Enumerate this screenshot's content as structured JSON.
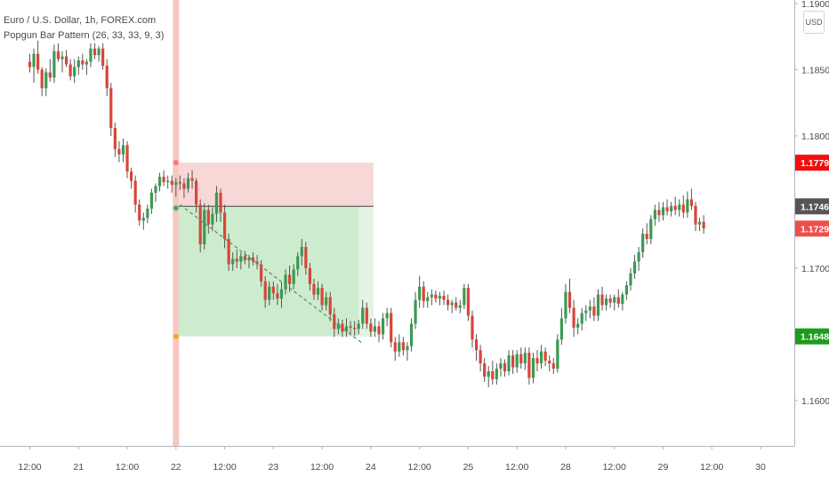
{
  "legend": {
    "symbol_line": "Euro / U.S. Dollar, 1h, FOREX.com",
    "indicator_line": "Popgun Bar Pattern (26, 33, 33, 9, 3)"
  },
  "currency_button": "USD",
  "colors": {
    "up": "#3a9a52",
    "down": "#d9453a",
    "stop_zone": "#f8d7d7",
    "target_zone": "#cdeccd",
    "target_zone_faded": "#e4f4e4",
    "signal_bar": "#f6c7c4",
    "stop_label": "#f20e0e",
    "current_label": "#555555",
    "last_label": "#ef4f4a",
    "target_label": "#1b9b1b",
    "dashed_trend": "#6b8f6b"
  },
  "chart_data": {
    "type": "candlestick",
    "title": "",
    "ylim": [
      1.1575,
      1.19
    ],
    "y_ticks": [
      {
        "value": 1.19,
        "label": "1.19000"
      },
      {
        "value": 1.185,
        "label": "1.18500"
      },
      {
        "value": 1.18,
        "label": "1.18000"
      },
      {
        "value": 1.175,
        "label": "1.17500"
      },
      {
        "value": 1.17,
        "label": "1.17000"
      },
      {
        "value": 1.165,
        "label": "1.16500"
      },
      {
        "value": 1.16,
        "label": "1.16000"
      }
    ],
    "x_ticks": [
      {
        "bar": 0,
        "label": "12:00"
      },
      {
        "bar": 12,
        "label": "21"
      },
      {
        "bar": 24,
        "label": "12:00"
      },
      {
        "bar": 36,
        "label": "22"
      },
      {
        "bar": 48,
        "label": "12:00"
      },
      {
        "bar": 60,
        "label": "23"
      },
      {
        "bar": 72,
        "label": "12:00"
      },
      {
        "bar": 84,
        "label": "24"
      },
      {
        "bar": 96,
        "label": "12:00"
      },
      {
        "bar": 108,
        "label": "25"
      },
      {
        "bar": 120,
        "label": "12:00"
      },
      {
        "bar": 132,
        "label": "28"
      },
      {
        "bar": 144,
        "label": "12:00"
      },
      {
        "bar": 156,
        "label": "29"
      },
      {
        "bar": 168,
        "label": "12:00"
      },
      {
        "bar": 180,
        "label": "30"
      }
    ],
    "candles": [
      [
        1.1856,
        1.1862,
        1.1848,
        1.1852
      ],
      [
        1.1852,
        1.1866,
        1.184,
        1.1862
      ],
      [
        1.1862,
        1.1872,
        1.1847,
        1.185
      ],
      [
        1.185,
        1.1852,
        1.183,
        1.1836
      ],
      [
        1.1836,
        1.1851,
        1.183,
        1.1848
      ],
      [
        1.1848,
        1.1858,
        1.1841,
        1.1844
      ],
      [
        1.1844,
        1.1869,
        1.184,
        1.1864
      ],
      [
        1.1864,
        1.187,
        1.1856,
        1.1858
      ],
      [
        1.1858,
        1.1864,
        1.1848,
        1.186
      ],
      [
        1.186,
        1.1865,
        1.1852,
        1.1854
      ],
      [
        1.1854,
        1.1858,
        1.1842,
        1.1845
      ],
      [
        1.1845,
        1.1858,
        1.184,
        1.1852
      ],
      [
        1.1852,
        1.186,
        1.1846,
        1.1857
      ],
      [
        1.1857,
        1.1862,
        1.185,
        1.1854
      ],
      [
        1.1854,
        1.1858,
        1.1846,
        1.1856
      ],
      [
        1.1856,
        1.187,
        1.1852,
        1.1866
      ],
      [
        1.1866,
        1.187,
        1.1858,
        1.1861
      ],
      [
        1.1861,
        1.1868,
        1.1856,
        1.1866
      ],
      [
        1.1866,
        1.187,
        1.185,
        1.1853
      ],
      [
        1.1853,
        1.1858,
        1.183,
        1.1836
      ],
      [
        1.1836,
        1.184,
        1.18,
        1.1806
      ],
      [
        1.1806,
        1.181,
        1.1784,
        1.179
      ],
      [
        1.179,
        1.1796,
        1.178,
        1.1786
      ],
      [
        1.1786,
        1.1798,
        1.178,
        1.1793
      ],
      [
        1.1793,
        1.1796,
        1.1768,
        1.1773
      ],
      [
        1.1773,
        1.1776,
        1.176,
        1.1766
      ],
      [
        1.1766,
        1.177,
        1.1742,
        1.1748
      ],
      [
        1.1748,
        1.1752,
        1.1732,
        1.1736
      ],
      [
        1.1736,
        1.1742,
        1.1729,
        1.1738
      ],
      [
        1.1738,
        1.1748,
        1.1734,
        1.1745
      ],
      [
        1.1745,
        1.176,
        1.1741,
        1.1757
      ],
      [
        1.1757,
        1.1764,
        1.175,
        1.1762
      ],
      [
        1.1762,
        1.1772,
        1.1758,
        1.1769
      ],
      [
        1.1769,
        1.1774,
        1.1762,
        1.1765
      ],
      [
        1.1765,
        1.177,
        1.176,
        1.1766
      ],
      [
        1.1766,
        1.177,
        1.1757,
        1.1763
      ],
      [
        1.1763,
        1.1768,
        1.1754,
        1.1765
      ],
      [
        1.1765,
        1.177,
        1.1759,
        1.1764
      ],
      [
        1.1764,
        1.1768,
        1.1753,
        1.176
      ],
      [
        1.176,
        1.1772,
        1.1757,
        1.1768
      ],
      [
        1.1768,
        1.1774,
        1.176,
        1.1766
      ],
      [
        1.1766,
        1.1768,
        1.1742,
        1.1748
      ],
      [
        1.1748,
        1.1752,
        1.1712,
        1.1718
      ],
      [
        1.1718,
        1.1749,
        1.1714,
        1.1744
      ],
      [
        1.1744,
        1.1748,
        1.1726,
        1.1733
      ],
      [
        1.1733,
        1.1746,
        1.1728,
        1.1741
      ],
      [
        1.1741,
        1.1762,
        1.1735,
        1.1757
      ],
      [
        1.1757,
        1.176,
        1.1735,
        1.1742
      ],
      [
        1.1742,
        1.1748,
        1.1715,
        1.1722
      ],
      [
        1.1722,
        1.1726,
        1.1698,
        1.1703
      ],
      [
        1.1703,
        1.1712,
        1.1698,
        1.1707
      ],
      [
        1.1707,
        1.1714,
        1.17,
        1.1705
      ],
      [
        1.1705,
        1.1712,
        1.1699,
        1.1709
      ],
      [
        1.1709,
        1.1713,
        1.1703,
        1.1706
      ],
      [
        1.1706,
        1.171,
        1.17,
        1.1708
      ],
      [
        1.1708,
        1.1712,
        1.1702,
        1.1705
      ],
      [
        1.1705,
        1.171,
        1.1699,
        1.1703
      ],
      [
        1.1703,
        1.1706,
        1.1686,
        1.169
      ],
      [
        1.169,
        1.1694,
        1.167,
        1.1676
      ],
      [
        1.1676,
        1.169,
        1.1672,
        1.1686
      ],
      [
        1.1686,
        1.169,
        1.1676,
        1.1681
      ],
      [
        1.1681,
        1.1688,
        1.1672,
        1.1677
      ],
      [
        1.1677,
        1.169,
        1.167,
        1.1684
      ],
      [
        1.1684,
        1.1699,
        1.168,
        1.1695
      ],
      [
        1.1695,
        1.1702,
        1.1682,
        1.1688
      ],
      [
        1.1688,
        1.1703,
        1.1684,
        1.1699
      ],
      [
        1.1699,
        1.1712,
        1.1694,
        1.1709
      ],
      [
        1.1709,
        1.1722,
        1.1702,
        1.1716
      ],
      [
        1.1716,
        1.172,
        1.1695,
        1.17
      ],
      [
        1.17,
        1.1704,
        1.1683,
        1.1688
      ],
      [
        1.1688,
        1.1692,
        1.1676,
        1.168
      ],
      [
        1.168,
        1.169,
        1.1676,
        1.1685
      ],
      [
        1.1685,
        1.1688,
        1.1668,
        1.1672
      ],
      [
        1.1672,
        1.1682,
        1.1668,
        1.1678
      ],
      [
        1.1678,
        1.1682,
        1.166,
        1.1665
      ],
      [
        1.1665,
        1.167,
        1.1648,
        1.1654
      ],
      [
        1.1654,
        1.1662,
        1.165,
        1.1658
      ],
      [
        1.1658,
        1.1661,
        1.1648,
        1.1652
      ],
      [
        1.1652,
        1.1662,
        1.1648,
        1.1656
      ],
      [
        1.1656,
        1.166,
        1.165,
        1.1655
      ],
      [
        1.1655,
        1.166,
        1.1649,
        1.1654
      ],
      [
        1.1654,
        1.1661,
        1.165,
        1.1658
      ],
      [
        1.1658,
        1.1676,
        1.1654,
        1.167
      ],
      [
        1.167,
        1.1674,
        1.1654,
        1.1658
      ],
      [
        1.1658,
        1.1662,
        1.1648,
        1.1652
      ],
      [
        1.1652,
        1.1662,
        1.1648,
        1.1656
      ],
      [
        1.1656,
        1.166,
        1.1644,
        1.165
      ],
      [
        1.165,
        1.1666,
        1.1646,
        1.1662
      ],
      [
        1.1662,
        1.167,
        1.1656,
        1.1666
      ],
      [
        1.1666,
        1.167,
        1.164,
        1.1644
      ],
      [
        1.1644,
        1.1648,
        1.163,
        1.1637
      ],
      [
        1.1637,
        1.165,
        1.1633,
        1.1644
      ],
      [
        1.1644,
        1.1648,
        1.1634,
        1.1638
      ],
      [
        1.1638,
        1.1644,
        1.163,
        1.1641
      ],
      [
        1.1641,
        1.1662,
        1.1637,
        1.1658
      ],
      [
        1.1658,
        1.1682,
        1.1654,
        1.1676
      ],
      [
        1.1676,
        1.1694,
        1.167,
        1.1686
      ],
      [
        1.1686,
        1.169,
        1.167,
        1.1675
      ],
      [
        1.1675,
        1.1682,
        1.167,
        1.1678
      ],
      [
        1.1678,
        1.1684,
        1.1672,
        1.168
      ],
      [
        1.168,
        1.1683,
        1.1674,
        1.1677
      ],
      [
        1.1677,
        1.1682,
        1.1672,
        1.1679
      ],
      [
        1.1679,
        1.1683,
        1.1672,
        1.1676
      ],
      [
        1.1676,
        1.168,
        1.1668,
        1.1672
      ],
      [
        1.1672,
        1.1676,
        1.1666,
        1.1674
      ],
      [
        1.1674,
        1.1678,
        1.1668,
        1.167
      ],
      [
        1.167,
        1.1676,
        1.1666,
        1.1672
      ],
      [
        1.1672,
        1.1688,
        1.1669,
        1.1685
      ],
      [
        1.1685,
        1.1688,
        1.166,
        1.1664
      ],
      [
        1.1664,
        1.1668,
        1.164,
        1.1646
      ],
      [
        1.1646,
        1.165,
        1.163,
        1.1638
      ],
      [
        1.1638,
        1.1642,
        1.1622,
        1.1628
      ],
      [
        1.1628,
        1.1632,
        1.1614,
        1.1618
      ],
      [
        1.1618,
        1.1626,
        1.161,
        1.1622
      ],
      [
        1.1622,
        1.163,
        1.1612,
        1.1616
      ],
      [
        1.1616,
        1.1628,
        1.1612,
        1.1624
      ],
      [
        1.1624,
        1.1632,
        1.1618,
        1.1628
      ],
      [
        1.1628,
        1.1631,
        1.1618,
        1.1622
      ],
      [
        1.1622,
        1.1638,
        1.1619,
        1.1634
      ],
      [
        1.1634,
        1.1638,
        1.162,
        1.1625
      ],
      [
        1.1625,
        1.1638,
        1.1621,
        1.1635
      ],
      [
        1.1635,
        1.164,
        1.1624,
        1.1628
      ],
      [
        1.1628,
        1.164,
        1.1623,
        1.1636
      ],
      [
        1.1636,
        1.164,
        1.1612,
        1.1617
      ],
      [
        1.1617,
        1.1636,
        1.1613,
        1.1632
      ],
      [
        1.1632,
        1.1638,
        1.1622,
        1.1628
      ],
      [
        1.1628,
        1.1642,
        1.1624,
        1.1637
      ],
      [
        1.1637,
        1.164,
        1.1626,
        1.163
      ],
      [
        1.163,
        1.1634,
        1.1622,
        1.1628
      ],
      [
        1.1628,
        1.1632,
        1.162,
        1.1624
      ],
      [
        1.1624,
        1.165,
        1.1621,
        1.1646
      ],
      [
        1.1646,
        1.167,
        1.1642,
        1.1662
      ],
      [
        1.1662,
        1.1688,
        1.1658,
        1.1682
      ],
      [
        1.1682,
        1.1692,
        1.1666,
        1.167
      ],
      [
        1.167,
        1.1676,
        1.1648,
        1.1655
      ],
      [
        1.1655,
        1.1662,
        1.165,
        1.1658
      ],
      [
        1.1658,
        1.167,
        1.1653,
        1.1666
      ],
      [
        1.1666,
        1.1672,
        1.166,
        1.1668
      ],
      [
        1.1668,
        1.1676,
        1.1662,
        1.1671
      ],
      [
        1.1671,
        1.1678,
        1.166,
        1.1664
      ],
      [
        1.1664,
        1.1684,
        1.166,
        1.168
      ],
      [
        1.168,
        1.1686,
        1.1668,
        1.1672
      ],
      [
        1.1672,
        1.168,
        1.1668,
        1.1677
      ],
      [
        1.1677,
        1.168,
        1.167,
        1.1674
      ],
      [
        1.1674,
        1.168,
        1.1668,
        1.1678
      ],
      [
        1.1678,
        1.1684,
        1.167,
        1.1673
      ],
      [
        1.1673,
        1.1682,
        1.1668,
        1.168
      ],
      [
        1.168,
        1.169,
        1.1676,
        1.1687
      ],
      [
        1.1687,
        1.17,
        1.1683,
        1.1696
      ],
      [
        1.1696,
        1.171,
        1.1692,
        1.1705
      ],
      [
        1.1705,
        1.1716,
        1.1698,
        1.1712
      ],
      [
        1.1712,
        1.173,
        1.1708,
        1.1726
      ],
      [
        1.1726,
        1.1734,
        1.1718,
        1.1722
      ],
      [
        1.1722,
        1.174,
        1.1718,
        1.1737
      ],
      [
        1.1737,
        1.1748,
        1.1732,
        1.1744
      ],
      [
        1.1744,
        1.175,
        1.1735,
        1.174
      ],
      [
        1.174,
        1.175,
        1.1736,
        1.1746
      ],
      [
        1.1746,
        1.1752,
        1.174,
        1.1743
      ],
      [
        1.1743,
        1.175,
        1.1739,
        1.1747
      ],
      [
        1.1747,
        1.1754,
        1.174,
        1.1744
      ],
      [
        1.1744,
        1.1752,
        1.1739,
        1.1748
      ],
      [
        1.1748,
        1.1755,
        1.1738,
        1.1742
      ],
      [
        1.1742,
        1.1758,
        1.1738,
        1.1752
      ],
      [
        1.1752,
        1.176,
        1.1744,
        1.1747
      ],
      [
        1.1747,
        1.175,
        1.1728,
        1.1733
      ],
      [
        1.1733,
        1.1738,
        1.1728,
        1.1735
      ],
      [
        1.1735,
        1.174,
        1.1726,
        1.173
      ]
    ],
    "annotations": {
      "signal_bar_index": 36,
      "trade_start_bar": 36,
      "trade_end_bar": 84,
      "target_faded_from_bar": 81,
      "entry": 1.17467,
      "stop": 1.17797,
      "target": 1.16484,
      "trend_from": {
        "bar": 37,
        "price": 1.1748
      },
      "trend_to": {
        "bar": 82,
        "price": 1.1643
      }
    },
    "price_labels": [
      {
        "value": 1.17797,
        "label": "1.17797",
        "role": "stop"
      },
      {
        "value": 1.17467,
        "label": "1.17467",
        "role": "current"
      },
      {
        "value": 1.17299,
        "label": "1.17299",
        "role": "last"
      },
      {
        "value": 1.16484,
        "label": "1.16484",
        "role": "target"
      }
    ]
  }
}
